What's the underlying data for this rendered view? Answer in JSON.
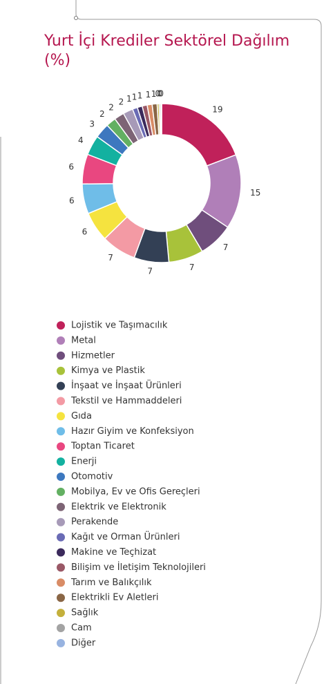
{
  "chart_data": {
    "type": "donut",
    "title": "Yurt İçi Krediler Sektörel Dağılım (%)",
    "categories": [
      "Lojistik ve Taşımacılık",
      "Metal",
      "Hizmetler",
      "Kimya ve Plastik",
      "İnşaat ve İnşaat Ürünleri",
      "Tekstil ve Hammaddeleri",
      "Gıda",
      "Hazır Giyim ve Konfeksiyon",
      "Toptan Ticaret",
      "Enerji",
      "Otomotiv",
      "Mobilya, Ev ve Ofis Gereçleri",
      "Elektrik ve Elektronik",
      "Perakende",
      "Kağıt ve Orman Ürünleri",
      "Makine ve Teçhizat",
      "Bilişim ve İletişim Teknolojileri",
      "Tarım ve Balıkçılık",
      "Elektrikli Ev Aletleri",
      "Sağlık",
      "Cam",
      "Diğer"
    ],
    "values": [
      19,
      15,
      7,
      7,
      7,
      7,
      6,
      6,
      6,
      4,
      3,
      2,
      2,
      2,
      1,
      1,
      1,
      1,
      1,
      0.4,
      0.3,
      0.2
    ],
    "value_labels": [
      "19",
      "15",
      "7",
      "7",
      "7",
      "7",
      "6",
      "6",
      "6",
      "4",
      "3",
      "2",
      "2",
      "2",
      "1",
      "1",
      "1",
      "1",
      "1",
      "0",
      "0",
      "0"
    ],
    "colors": [
      "#c0215a",
      "#b07fb8",
      "#6f4e7c",
      "#a8c23a",
      "#334055",
      "#f39aa4",
      "#f5e33f",
      "#6fbde8",
      "#e94780",
      "#13b1a0",
      "#3d78bf",
      "#63b062",
      "#7d6475",
      "#a79ab8",
      "#6a6bb5",
      "#3b2a5c",
      "#9a5866",
      "#d98c66",
      "#8a6646",
      "#c4b03c",
      "#a3a3a3",
      "#98b3e0"
    ]
  }
}
